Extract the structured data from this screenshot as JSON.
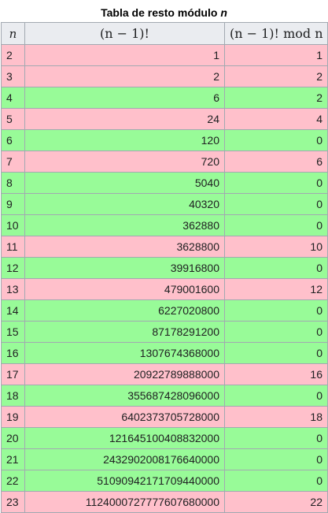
{
  "caption": {
    "prefix": "Tabla de resto módulo",
    "variable": "n"
  },
  "table": {
    "headers": [
      "n",
      "(n − 1)!",
      "(n − 1)!  mod  n"
    ],
    "row_colors": {
      "prime": "#ffc0cb",
      "composite": "#98fb98"
    },
    "rows": [
      {
        "n": "2",
        "factorial": "1",
        "mod": "1",
        "type": "prime"
      },
      {
        "n": "3",
        "factorial": "2",
        "mod": "2",
        "type": "prime"
      },
      {
        "n": "4",
        "factorial": "6",
        "mod": "2",
        "type": "composite"
      },
      {
        "n": "5",
        "factorial": "24",
        "mod": "4",
        "type": "prime"
      },
      {
        "n": "6",
        "factorial": "120",
        "mod": "0",
        "type": "composite"
      },
      {
        "n": "7",
        "factorial": "720",
        "mod": "6",
        "type": "prime"
      },
      {
        "n": "8",
        "factorial": "5040",
        "mod": "0",
        "type": "composite"
      },
      {
        "n": "9",
        "factorial": "40320",
        "mod": "0",
        "type": "composite"
      },
      {
        "n": "10",
        "factorial": "362880",
        "mod": "0",
        "type": "composite"
      },
      {
        "n": "11",
        "factorial": "3628800",
        "mod": "10",
        "type": "prime"
      },
      {
        "n": "12",
        "factorial": "39916800",
        "mod": "0",
        "type": "composite"
      },
      {
        "n": "13",
        "factorial": "479001600",
        "mod": "12",
        "type": "prime"
      },
      {
        "n": "14",
        "factorial": "6227020800",
        "mod": "0",
        "type": "composite"
      },
      {
        "n": "15",
        "factorial": "87178291200",
        "mod": "0",
        "type": "composite"
      },
      {
        "n": "16",
        "factorial": "1307674368000",
        "mod": "0",
        "type": "composite"
      },
      {
        "n": "17",
        "factorial": "20922789888000",
        "mod": "16",
        "type": "prime"
      },
      {
        "n": "18",
        "factorial": "355687428096000",
        "mod": "0",
        "type": "composite"
      },
      {
        "n": "19",
        "factorial": "6402373705728000",
        "mod": "18",
        "type": "prime"
      },
      {
        "n": "20",
        "factorial": "121645100408832000",
        "mod": "0",
        "type": "composite"
      },
      {
        "n": "21",
        "factorial": "2432902008176640000",
        "mod": "0",
        "type": "composite"
      },
      {
        "n": "22",
        "factorial": "51090942171709440000",
        "mod": "0",
        "type": "composite"
      },
      {
        "n": "23",
        "factorial": "1124000727777607680000",
        "mod": "22",
        "type": "prime"
      }
    ]
  }
}
